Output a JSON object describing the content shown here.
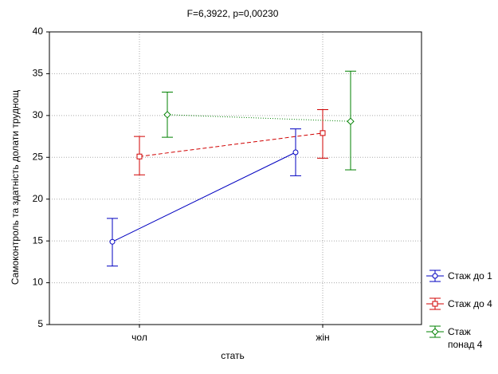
{
  "chart_data": {
    "type": "line",
    "title": "F=6,3922, p=0,00230",
    "x_label": "стать",
    "y_label": "Самоконтроль та здатність долати труднощ",
    "categories": [
      "чол",
      "жін"
    ],
    "ylim": [
      5,
      40
    ],
    "yticks": [
      5,
      10,
      15,
      20,
      25,
      30,
      35,
      40
    ],
    "grid": true,
    "series": [
      {
        "name": "Стаж до 1",
        "color": "#0000c0",
        "marker": "circle",
        "dash": "solid",
        "values": [
          14.9,
          25.6
        ],
        "upper": [
          17.7,
          28.4
        ],
        "lower": [
          12.0,
          22.8
        ]
      },
      {
        "name": "Стаж до 4",
        "color": "#d00000",
        "marker": "square",
        "dash": "dashed",
        "values": [
          25.1,
          27.9
        ],
        "upper": [
          27.5,
          30.7
        ],
        "lower": [
          22.9,
          24.9
        ]
      },
      {
        "name": "Стаж понад 4",
        "color": "#008000",
        "marker": "diamond",
        "dash": "dotted",
        "values": [
          30.1,
          29.3
        ],
        "upper": [
          32.8,
          35.3
        ],
        "lower": [
          27.4,
          23.5
        ]
      }
    ]
  }
}
